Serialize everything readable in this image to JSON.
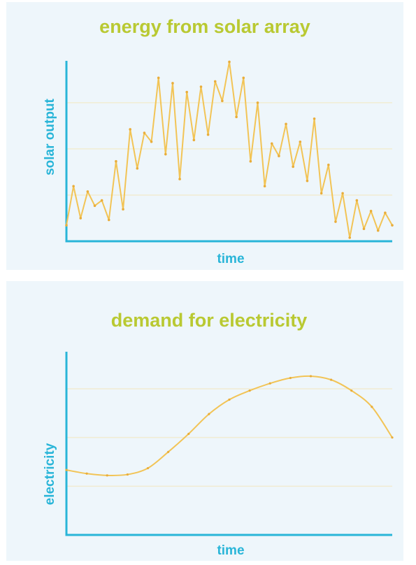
{
  "colors": {
    "panel_background": "#eef6fb",
    "title": "#b9c932",
    "axis": "#29b5d8",
    "axis_label": "#29b5d8",
    "series_line": "#f2c456",
    "series_marker": "#e9ad3a",
    "gridline": "#f1ecd2"
  },
  "chart_data": [
    {
      "type": "line",
      "title": "energy from solar array",
      "xlabel": "time",
      "ylabel": "solar output",
      "xlim": [
        0,
        46
      ],
      "ylim": [
        0,
        100
      ],
      "grid": true,
      "gridlines_y": [
        26,
        52,
        78
      ],
      "x_ticks_shown": false,
      "y_ticks_shown": false,
      "series": [
        {
          "x": [
            0,
            1,
            2,
            3,
            4,
            5,
            6,
            7,
            8,
            9,
            10,
            11,
            12,
            13,
            14,
            15,
            16,
            17,
            18,
            19,
            20,
            21,
            22,
            23,
            24,
            25,
            26,
            27,
            28,
            29,
            30,
            31,
            32,
            33,
            34,
            35,
            36,
            37,
            38,
            39,
            40,
            41,
            42,
            43,
            44,
            45,
            46
          ],
          "values": [
            9,
            31,
            13,
            28,
            20,
            23,
            12,
            45,
            18,
            63,
            41,
            61,
            56,
            92,
            49,
            89,
            35,
            84,
            57,
            87,
            60,
            90,
            79,
            101,
            70,
            92,
            45,
            78,
            31,
            55,
            48,
            66,
            42,
            56,
            34,
            69,
            27,
            43,
            11,
            27,
            2,
            23,
            7,
            17,
            6,
            16,
            9
          ]
        }
      ]
    },
    {
      "type": "line",
      "title": "demand for electricity",
      "xlabel": "time",
      "ylabel": "electricity",
      "xlim": [
        0,
        16
      ],
      "ylim": [
        0,
        100
      ],
      "grid": true,
      "gridlines_y": [
        27,
        54,
        81
      ],
      "x_ticks_shown": false,
      "y_ticks_shown": false,
      "series": [
        {
          "x": [
            0,
            1,
            2,
            3,
            4,
            5,
            6,
            7,
            8,
            9,
            10,
            11,
            12,
            13,
            14,
            15,
            16
          ],
          "values": [
            36,
            34,
            33,
            33.5,
            37,
            46,
            56,
            67,
            75,
            80,
            84,
            87,
            88,
            86,
            80,
            71,
            54
          ]
        }
      ]
    }
  ]
}
